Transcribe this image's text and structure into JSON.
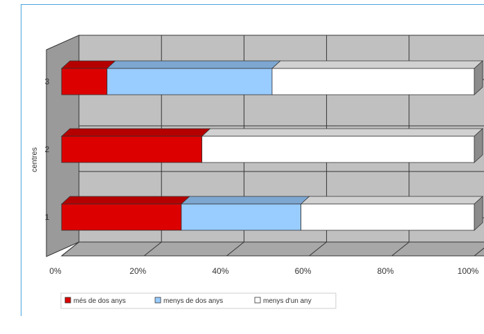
{
  "chart_data": {
    "type": "bar",
    "orientation": "horizontal",
    "stacked": "percent",
    "style": "3d",
    "categories": [
      "1",
      "2",
      "3"
    ],
    "ylabel": "centres",
    "xlim": [
      0,
      100
    ],
    "x_ticks": [
      "0%",
      "20%",
      "40%",
      "60%",
      "80%",
      "100%"
    ],
    "grid": true,
    "legend_position": "bottom",
    "series": [
      {
        "name": "més de dos anys",
        "values": [
          29,
          34,
          11
        ],
        "color": "#dd0000"
      },
      {
        "name": "menys de dos anys",
        "values": [
          29,
          0,
          40
        ],
        "color": "#99ccff"
      },
      {
        "name": "menys d'un any",
        "values": [
          42,
          66,
          49
        ],
        "color": "#ffffff"
      }
    ]
  }
}
